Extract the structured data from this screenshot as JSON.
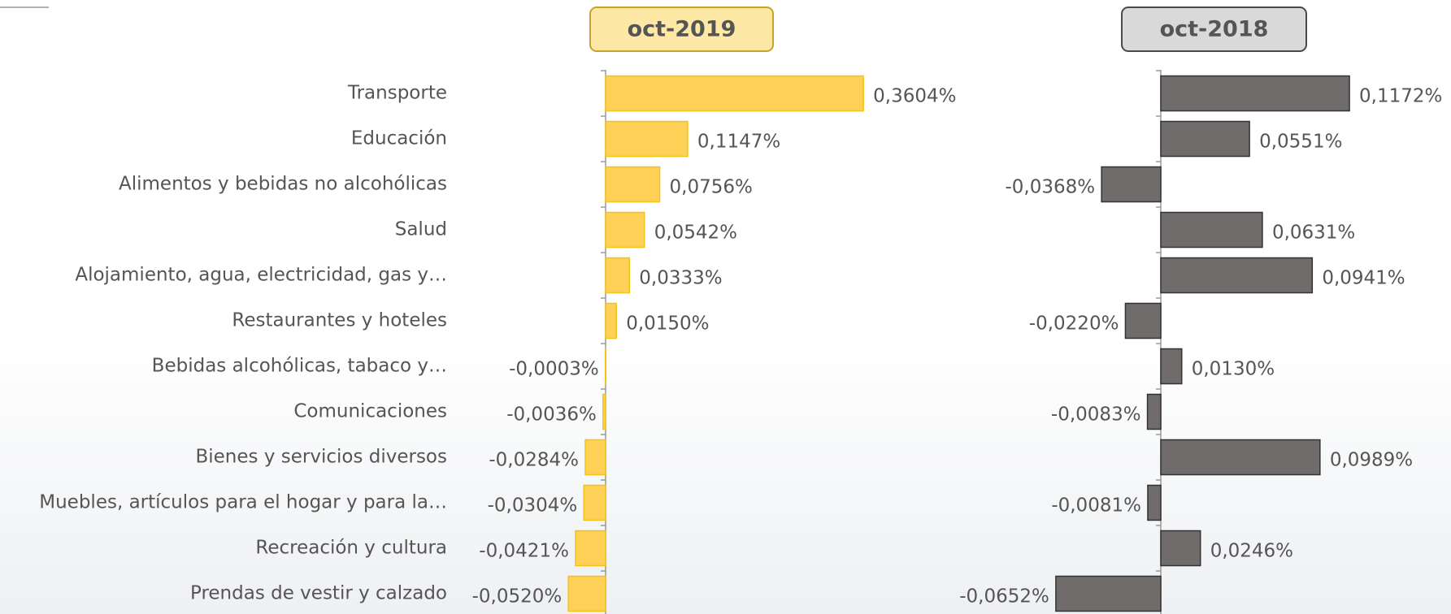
{
  "chart_data": {
    "type": "bar",
    "orientation": "horizontal",
    "categories": [
      "Transporte",
      "Educación",
      "Alimentos y bebidas no alcohólicas",
      "Salud",
      "Alojamiento, agua, electricidad, gas y…",
      "Restaurantes y hoteles",
      "Bebidas alcohólicas, tabaco y…",
      "Comunicaciones",
      "Bienes y servicios diversos",
      "Muebles, artículos para el hogar y para la…",
      "Recreación y cultura",
      "Prendas de vestir y calzado"
    ],
    "series": [
      {
        "name": "oct-2019",
        "color": "#ffd257",
        "xlim": [
          -0.1,
          0.4
        ],
        "values": [
          0.3604,
          0.1147,
          0.0756,
          0.0542,
          0.0333,
          0.015,
          -0.0003,
          -0.0036,
          -0.0284,
          -0.0304,
          -0.0421,
          -0.052
        ],
        "value_labels": [
          "0,3604%",
          "0,1147%",
          "0,0756%",
          "0,0542%",
          "0,0333%",
          "0,0150%",
          "-0,0003%",
          "-0,0036%",
          "-0,0284%",
          "-0,0304%",
          "-0,0421%",
          "-0,0520%"
        ]
      },
      {
        "name": "oct-2018",
        "color": "#706c6c",
        "xlim": [
          -0.1,
          0.15
        ],
        "values": [
          0.1172,
          0.0551,
          -0.0368,
          0.0631,
          0.0941,
          -0.022,
          0.013,
          -0.0083,
          0.0989,
          -0.0081,
          0.0246,
          -0.0652
        ],
        "value_labels": [
          "0,1172%",
          "0,0551%",
          "-0,0368%",
          "0,0631%",
          "0,0941%",
          "-0,0220%",
          "0,0130%",
          "-0,0083%",
          "0,0989%",
          "-0,0081%",
          "0,0246%",
          "-0,0652%"
        ]
      }
    ]
  }
}
